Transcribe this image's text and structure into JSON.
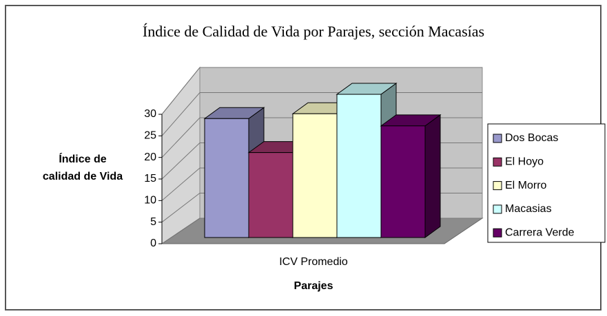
{
  "chart_data": {
    "type": "bar3d",
    "title": "Índice de Calidad de Vida por Parajes, sección Macasías",
    "y_label": [
      "Índice de",
      "calidad de Vida"
    ],
    "x_label": "Parajes",
    "categories": [
      "ICV Promedio"
    ],
    "series": [
      {
        "name": "Dos Bocas",
        "color": "#9999cc",
        "values": [
          24.5
        ]
      },
      {
        "name": "El Hoyo",
        "color": "#993366",
        "values": [
          17.5
        ]
      },
      {
        "name": "El Morro",
        "color": "#ffffcc",
        "values": [
          25.5
        ]
      },
      {
        "name": "Macasias",
        "color": "#ccffff",
        "values": [
          29.5
        ]
      },
      {
        "name": "Carrera Verde",
        "color": "#660066",
        "values": [
          23
        ]
      }
    ],
    "ylim": [
      0,
      30
    ],
    "yticks": [
      0,
      5,
      10,
      15,
      20,
      25,
      30
    ],
    "grid": true,
    "legend": "right"
  }
}
